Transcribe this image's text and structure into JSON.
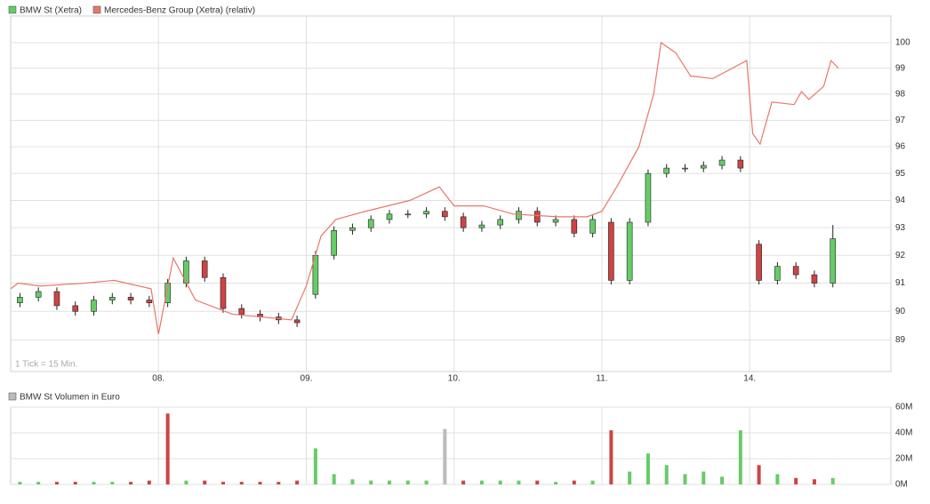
{
  "chart_data": [
    {
      "type": "candlestick",
      "annotation": "1 Tick = 15 Min.",
      "log_scale": true,
      "grid": true,
      "xlim": [
        0,
        5.955
      ],
      "ylim": [
        87.9,
        101.05
      ],
      "xticks": [
        {
          "value": 1,
          "label": "08."
        },
        {
          "value": 2,
          "label": "09."
        },
        {
          "value": 3,
          "label": "10."
        },
        {
          "value": 4,
          "label": "11."
        },
        {
          "value": 5,
          "label": "14."
        }
      ],
      "yticks": [
        89,
        90,
        91,
        92,
        93,
        94,
        95,
        96,
        97,
        98,
        99,
        100
      ],
      "series": [
        {
          "name": "BMW St (Xetra)",
          "color": "#66cc66",
          "down_color": "#cc4444",
          "type": "candlestick",
          "x": [
            0.0625,
            0.1875,
            0.3125,
            0.4375,
            0.5625,
            0.6875,
            0.8125,
            0.9375,
            1.0625,
            1.1875,
            1.3125,
            1.4375,
            1.5625,
            1.6875,
            1.8125,
            1.9375,
            2.0625,
            2.1875,
            2.3125,
            2.4375,
            2.5625,
            2.6875,
            2.8125,
            2.9375,
            3.0625,
            3.1875,
            3.3125,
            3.4375,
            3.5625,
            3.6875,
            3.8125,
            3.9375,
            4.0625,
            4.1875,
            4.3125,
            4.4375,
            4.5625,
            4.6875,
            4.8125,
            4.9375,
            5.0625,
            5.1875,
            5.3125,
            5.4375,
            5.5625
          ],
          "open": [
            90.3,
            90.5,
            90.7,
            90.2,
            90.0,
            90.4,
            90.5,
            90.4,
            90.3,
            91.0,
            91.8,
            91.2,
            90.1,
            89.9,
            89.8,
            89.7,
            90.6,
            92.0,
            92.9,
            93.0,
            93.3,
            93.5,
            93.5,
            93.6,
            93.4,
            93.0,
            93.1,
            93.3,
            93.6,
            93.2,
            93.3,
            92.8,
            93.2,
            91.1,
            93.2,
            95.0,
            95.2,
            95.2,
            95.3,
            95.5,
            92.4,
            91.1,
            91.6,
            91.3,
            91.0
          ],
          "high": [
            90.65,
            90.85,
            90.85,
            90.35,
            90.55,
            90.65,
            90.65,
            90.55,
            91.15,
            91.95,
            91.95,
            91.35,
            90.25,
            90.05,
            89.95,
            89.85,
            92.15,
            93.05,
            93.15,
            93.45,
            93.65,
            93.65,
            93.75,
            93.75,
            93.55,
            93.25,
            93.45,
            93.75,
            93.75,
            93.45,
            93.45,
            93.45,
            93.35,
            93.35,
            95.15,
            95.35,
            95.35,
            95.45,
            95.65,
            95.65,
            92.55,
            91.75,
            91.75,
            91.45,
            93.1
          ],
          "low": [
            90.15,
            90.35,
            90.05,
            89.85,
            89.85,
            90.25,
            90.25,
            90.15,
            90.15,
            90.85,
            91.05,
            89.95,
            89.75,
            89.65,
            89.55,
            89.45,
            90.45,
            91.85,
            92.75,
            92.85,
            93.15,
            93.35,
            93.35,
            93.25,
            92.85,
            92.85,
            92.95,
            93.15,
            93.05,
            93.05,
            92.65,
            92.65,
            90.95,
            90.95,
            93.05,
            94.85,
            95.05,
            95.05,
            95.15,
            95.05,
            90.95,
            90.95,
            91.15,
            90.85,
            90.85
          ],
          "close": [
            90.5,
            90.7,
            90.2,
            90.0,
            90.4,
            90.5,
            90.4,
            90.3,
            91.0,
            91.8,
            91.2,
            90.1,
            89.9,
            89.8,
            89.7,
            89.6,
            92.0,
            92.9,
            93.0,
            93.3,
            93.5,
            93.5,
            93.6,
            93.4,
            93.0,
            93.1,
            93.3,
            93.6,
            93.2,
            93.3,
            92.8,
            93.3,
            91.1,
            93.2,
            95.0,
            95.2,
            95.2,
            95.3,
            95.5,
            95.2,
            91.1,
            91.6,
            91.3,
            91.0,
            92.6
          ]
        },
        {
          "name": "Mercedes-Benz Group (Xetra) (relativ)",
          "color": "#e8776a",
          "type": "line",
          "x": [
            0.0,
            0.05,
            0.2,
            0.5,
            0.7,
            0.95,
            1.0,
            1.1,
            1.25,
            1.5,
            1.9,
            2.0,
            2.1,
            2.2,
            2.4,
            2.7,
            2.9,
            3.0,
            3.2,
            3.4,
            3.7,
            3.9,
            4.0,
            4.1,
            4.25,
            4.35,
            4.4,
            4.5,
            4.6,
            4.75,
            4.98,
            5.02,
            5.07,
            5.15,
            5.3,
            5.35,
            5.4,
            5.5,
            5.55,
            5.6
          ],
          "values": [
            90.8,
            91.0,
            90.9,
            91.0,
            91.1,
            90.8,
            89.2,
            91.9,
            90.4,
            89.9,
            89.7,
            90.9,
            92.7,
            93.3,
            93.6,
            94.0,
            94.5,
            93.8,
            93.8,
            93.5,
            93.4,
            93.4,
            93.6,
            94.5,
            96.0,
            98.0,
            100.0,
            99.6,
            98.7,
            98.6,
            99.3,
            96.5,
            96.1,
            97.7,
            97.6,
            98.1,
            97.8,
            98.3,
            99.3,
            99.0
          ]
        }
      ]
    },
    {
      "type": "bar",
      "title": "BMW St Volumen in Euro",
      "xlim": [
        0,
        5.955
      ],
      "ylim": [
        0,
        60
      ],
      "grid": true,
      "yticks": [
        {
          "value": 0,
          "label": "0M"
        },
        {
          "value": 20,
          "label": "20M"
        },
        {
          "value": 40,
          "label": "40M"
        },
        {
          "value": 60,
          "label": "60M"
        }
      ],
      "legend_color": "#bbbbbb",
      "x": [
        0.0625,
        0.1875,
        0.3125,
        0.4375,
        0.5625,
        0.6875,
        0.8125,
        0.9375,
        1.0625,
        1.1875,
        1.3125,
        1.4375,
        1.5625,
        1.6875,
        1.8125,
        1.9375,
        2.0625,
        2.1875,
        2.3125,
        2.4375,
        2.5625,
        2.6875,
        2.8125,
        2.9375,
        3.0625,
        3.1875,
        3.3125,
        3.4375,
        3.5625,
        3.6875,
        3.8125,
        3.9375,
        4.0625,
        4.1875,
        4.3125,
        4.4375,
        4.5625,
        4.6875,
        4.8125,
        4.9375,
        5.0625,
        5.1875,
        5.3125,
        5.4375,
        5.5625
      ],
      "values": [
        2,
        2,
        2,
        2,
        2,
        2,
        2,
        3,
        55,
        3,
        3,
        2,
        2,
        2,
        2,
        3,
        28,
        8,
        4,
        3,
        3,
        3,
        3,
        43,
        3,
        3,
        3,
        3,
        3,
        2,
        3,
        3,
        42,
        10,
        24,
        15,
        8,
        10,
        6,
        42,
        15,
        8,
        5,
        4,
        5
      ],
      "colors": [
        "#66cc66",
        "#66cc66",
        "#cc4444",
        "#cc4444",
        "#66cc66",
        "#66cc66",
        "#cc4444",
        "#cc4444",
        "#cc4444",
        "#66cc66",
        "#cc4444",
        "#cc4444",
        "#cc4444",
        "#cc4444",
        "#cc4444",
        "#cc4444",
        "#66cc66",
        "#66cc66",
        "#66cc66",
        "#66cc66",
        "#66cc66",
        "#66cc66",
        "#66cc66",
        "#bbbbbb",
        "#cc4444",
        "#66cc66",
        "#66cc66",
        "#66cc66",
        "#cc4444",
        "#66cc66",
        "#cc4444",
        "#66cc66",
        "#cc4444",
        "#66cc66",
        "#66cc66",
        "#66cc66",
        "#66cc66",
        "#66cc66",
        "#66cc66",
        "#66cc66",
        "#cc4444",
        "#66cc66",
        "#cc4444",
        "#cc4444",
        "#66cc66"
      ]
    }
  ]
}
